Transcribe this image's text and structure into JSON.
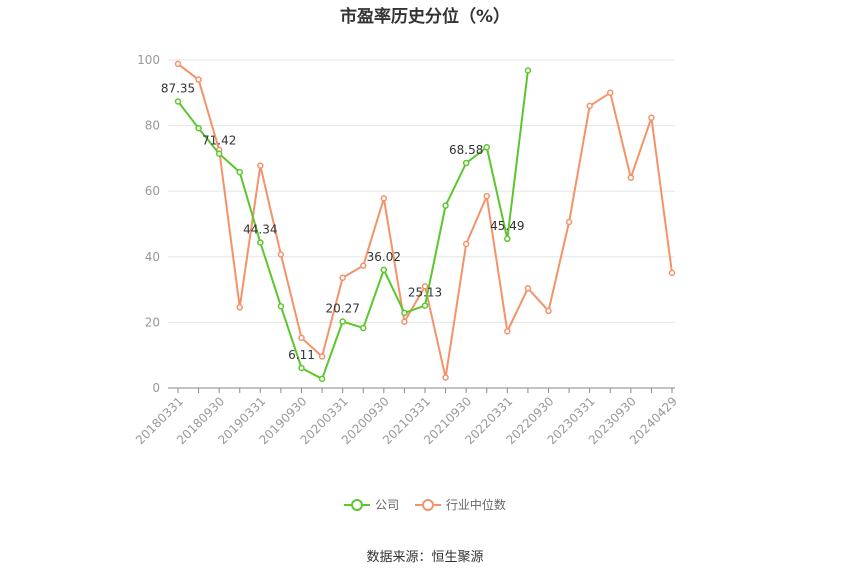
{
  "title": "市盈率历史分位（%）",
  "source": "数据来源：恒生聚源",
  "chart_data": {
    "type": "line",
    "title": "市盈率历史分位（%）",
    "ylim": [
      0,
      100
    ],
    "yticks": [
      0,
      20,
      40,
      60,
      80,
      100
    ],
    "grid": true,
    "legend_position": "bottom",
    "x_tick_labels": [
      "20180331",
      "20180930",
      "20190331",
      "20190930",
      "20200331",
      "20200930",
      "20210331",
      "20210930",
      "20220331",
      "20220930",
      "20230331",
      "20230930",
      "20240429"
    ],
    "series": [
      {
        "name": "公司",
        "color": "#5cc72d",
        "values": [
          87.35,
          79.2,
          71.42,
          65.8,
          44.34,
          24.9,
          6.11,
          2.8,
          20.27,
          18.3,
          36.02,
          22.9,
          25.13,
          55.6,
          68.58,
          73.4,
          45.49,
          96.8,
          null,
          null,
          null,
          null,
          null,
          null,
          null
        ],
        "labels": [
          {
            "index": 0,
            "text": "87.35"
          },
          {
            "index": 2,
            "text": "71.42"
          },
          {
            "index": 4,
            "text": "44.34"
          },
          {
            "index": 6,
            "text": "6.11"
          },
          {
            "index": 8,
            "text": "20.27"
          },
          {
            "index": 10,
            "text": "36.02"
          },
          {
            "index": 12,
            "text": "25.13"
          },
          {
            "index": 14,
            "text": "68.58"
          },
          {
            "index": 16,
            "text": "45.49"
          }
        ]
      },
      {
        "name": "行业中位数",
        "color": "#f4926a",
        "values": [
          98.8,
          94.0,
          72.6,
          24.6,
          67.8,
          40.7,
          15.3,
          9.6,
          33.6,
          37.3,
          57.8,
          20.2,
          31.0,
          3.2,
          43.9,
          58.5,
          17.3,
          30.4,
          23.5,
          50.6,
          86.0,
          90.0,
          64.1,
          82.4,
          35.1
        ]
      }
    ]
  }
}
